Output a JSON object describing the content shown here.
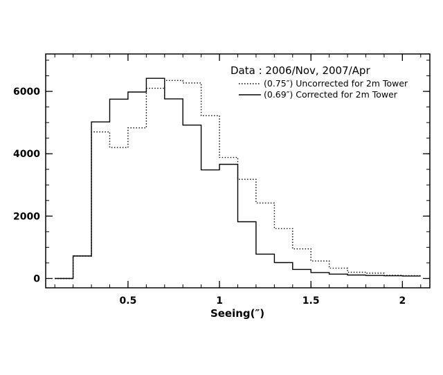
{
  "chart_data": {
    "type": "line",
    "style": "step-histogram",
    "xlabel": "Seeing(″)",
    "ylabel": "",
    "xlim": [
      0.05,
      2.15
    ],
    "ylim": [
      -300,
      7200
    ],
    "xticks": [
      0.5,
      1,
      1.5,
      2
    ],
    "xtick_labels": [
      "0.5",
      "1",
      "1.5",
      "2"
    ],
    "yticks": [
      0,
      2000,
      4000,
      6000
    ],
    "ytick_labels": [
      "0",
      "2000",
      "4000",
      "6000"
    ],
    "grid": false,
    "legend": {
      "placement": "top-right",
      "title": "Data : 2006/Nov, 2007/Apr"
    },
    "bin_edges": [
      0.1,
      0.2,
      0.3,
      0.4,
      0.5,
      0.6,
      0.7,
      0.8,
      0.9,
      1.0,
      1.1,
      1.2,
      1.3,
      1.4,
      1.5,
      1.6,
      1.7,
      1.8,
      1.9,
      2.0,
      2.1
    ],
    "series": [
      {
        "name": "(0.75″) Uncorrected for 2m Tower",
        "line_style": "dotted",
        "color": "#000000",
        "values": [
          0,
          720,
          4700,
          4200,
          4830,
          6100,
          6350,
          6270,
          5220,
          3880,
          3180,
          2420,
          1600,
          950,
          560,
          330,
          200,
          170,
          100,
          90,
          80
        ]
      },
      {
        "name": "(0.69″) Corrected for 2m Tower",
        "line_style": "solid",
        "color": "#000000",
        "values": [
          0,
          720,
          5020,
          5750,
          5980,
          6420,
          5760,
          4920,
          3480,
          3660,
          1820,
          780,
          510,
          290,
          190,
          140,
          110,
          95,
          85,
          80,
          80
        ]
      }
    ]
  }
}
